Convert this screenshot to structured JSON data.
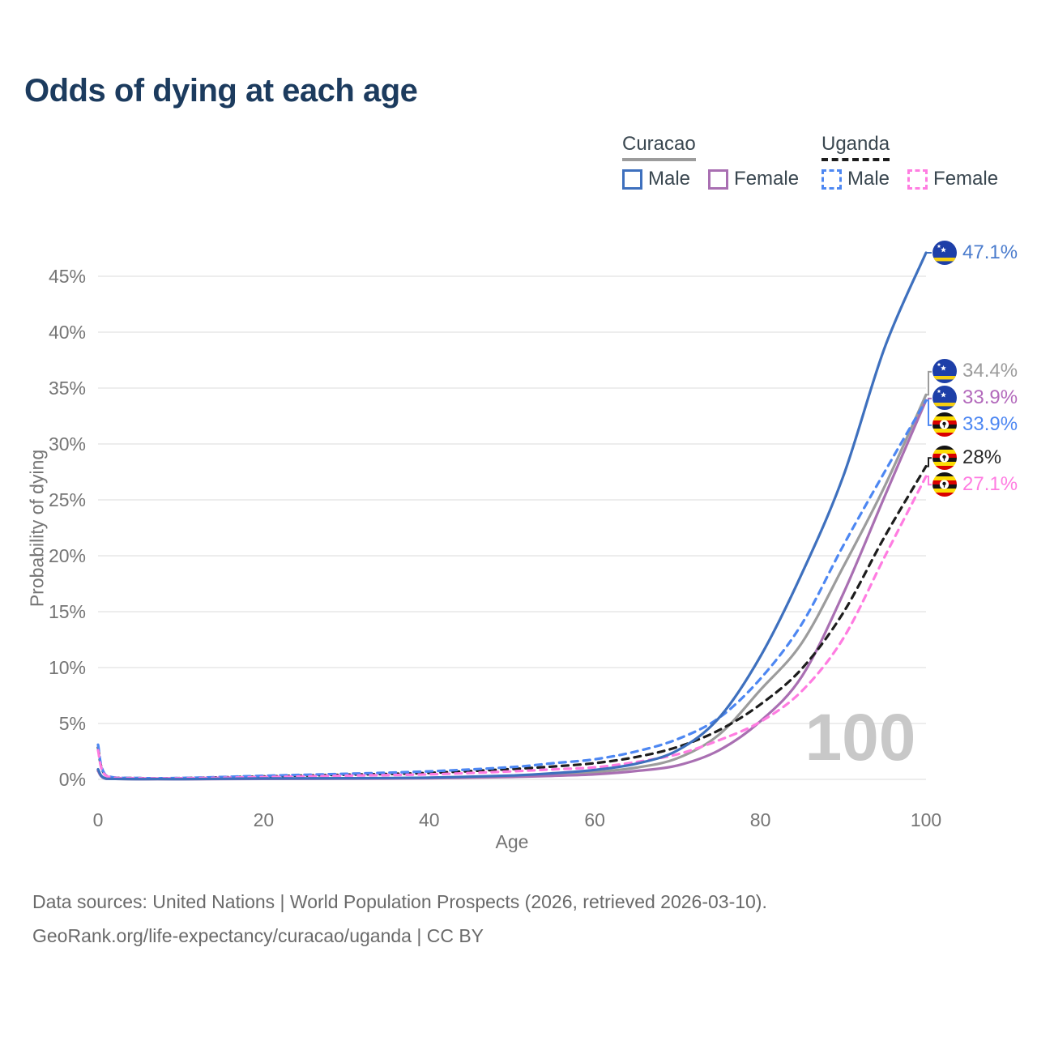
{
  "page": {
    "title": "Odds of dying at each age"
  },
  "legend": {
    "groups": [
      {
        "country": "Curacao",
        "style": "solid",
        "items": [
          {
            "label": "Male"
          },
          {
            "label": "Female"
          }
        ]
      },
      {
        "country": "Uganda",
        "style": "dashed",
        "items": [
          {
            "label": "Male"
          },
          {
            "label": "Female"
          }
        ]
      }
    ]
  },
  "chart_data": {
    "type": "line",
    "title": "Odds of dying at each age",
    "xlabel": "Age",
    "ylabel": "Probability of dying",
    "xlim": [
      0,
      100
    ],
    "ylim_pct": [
      0,
      48
    ],
    "grid": "horizontal-only",
    "x_ticks": [
      0,
      20,
      40,
      60,
      80,
      100
    ],
    "x_tick_labels": [
      "0",
      "20",
      "40",
      "60",
      "80",
      "100"
    ],
    "y_ticks_pct": [
      0,
      5,
      10,
      15,
      20,
      25,
      30,
      35,
      40,
      45
    ],
    "y_tick_labels": [
      "0%",
      "5%",
      "10%",
      "15%",
      "20%",
      "25%",
      "30%",
      "35%",
      "40%",
      "45%"
    ],
    "watermark": "100",
    "ages": [
      0,
      1,
      5,
      10,
      20,
      30,
      40,
      50,
      55,
      60,
      65,
      70,
      75,
      80,
      85,
      90,
      95,
      100
    ],
    "series": [
      {
        "id": "curacao-both",
        "country": "Curacao",
        "sex": "Both",
        "dash": "solid",
        "color": "#9c9c9c",
        "label_color": "#9c9c9c",
        "flag": "curacao",
        "end_label": "34.4%",
        "values_pct": [
          0.82,
          0.055,
          0.018,
          0.018,
          0.06,
          0.08,
          0.13,
          0.28,
          0.45,
          0.65,
          1.05,
          1.9,
          4.0,
          8.0,
          12.2,
          19.0,
          26.2,
          34.4
        ]
      },
      {
        "id": "curacao-female",
        "country": "Curacao",
        "sex": "Female",
        "dash": "solid",
        "color": "#a96fb2",
        "label_color": "#b36abc",
        "flag": "curacao",
        "end_label": "33.9%",
        "values_pct": [
          0.75,
          0.05,
          0.015,
          0.015,
          0.04,
          0.06,
          0.1,
          0.22,
          0.32,
          0.45,
          0.75,
          1.25,
          2.6,
          5.2,
          9.2,
          16.6,
          25.3,
          33.9
        ]
      },
      {
        "id": "uganda-both",
        "country": "Uganda",
        "sex": "Both",
        "dash": "dashed",
        "color": "#1d1d1d",
        "label_color": "#2a2a2a",
        "flag": "uganda",
        "end_label": "28%",
        "values_pct": [
          2.85,
          0.32,
          0.11,
          0.11,
          0.26,
          0.42,
          0.58,
          0.93,
          1.15,
          1.45,
          2.0,
          2.9,
          4.4,
          6.7,
          9.9,
          14.9,
          21.7,
          28.0
        ]
      },
      {
        "id": "uganda-male",
        "country": "Uganda",
        "sex": "Male",
        "dash": "dashed",
        "color": "#4d87f2",
        "label_color": "#4d87f2",
        "flag": "uganda",
        "end_label": "33.9%",
        "values_pct": [
          3.1,
          0.35,
          0.12,
          0.12,
          0.32,
          0.5,
          0.72,
          1.1,
          1.45,
          1.8,
          2.5,
          3.6,
          5.5,
          9.0,
          13.9,
          20.9,
          27.5,
          33.9
        ]
      },
      {
        "id": "uganda-female",
        "country": "Uganda",
        "sex": "Female",
        "dash": "dashed",
        "color": "#ff7ce1",
        "label_color": "#ff7ce1",
        "flag": "uganda",
        "end_label": "27.1%",
        "values_pct": [
          2.6,
          0.3,
          0.1,
          0.1,
          0.2,
          0.33,
          0.45,
          0.72,
          0.9,
          1.08,
          1.55,
          2.25,
          3.5,
          5.15,
          7.9,
          12.6,
          19.9,
          27.1
        ]
      },
      {
        "id": "curacao-male",
        "country": "Curacao",
        "sex": "Male",
        "dash": "solid",
        "color": "#3e70be",
        "label_color": "#4b7ccd",
        "flag": "curacao",
        "end_label": "47.1%",
        "values_pct": [
          0.9,
          0.06,
          0.02,
          0.02,
          0.08,
          0.1,
          0.16,
          0.35,
          0.55,
          0.85,
          1.4,
          2.6,
          5.5,
          11.0,
          18.4,
          27.1,
          38.6,
          47.1
        ]
      }
    ],
    "flags": {
      "curacao": {
        "field": "#1d3fa8",
        "stripe": "#f5cf10",
        "star": "#ffffff"
      },
      "uganda": {
        "stripes": [
          "#141414",
          "#fcdc04",
          "#d90000",
          "#141414",
          "#fcdc04",
          "#d90000"
        ],
        "disc": "#ffffff",
        "bird": "#141414"
      }
    },
    "theme": {
      "grid": "#e7e7e7",
      "tick_text": "#757575",
      "watermark_color": "#c8c8c8",
      "title_color": "#1c3b5e",
      "legend_text": "#3a4750",
      "footer_text": "#6a6a6a"
    }
  },
  "footer": {
    "line1": "Data sources: United Nations | World Population Prospects (2026, retrieved 2026-03-10).",
    "line2": "GeoRank.org/life-expectancy/curacao/uganda | CC BY"
  }
}
